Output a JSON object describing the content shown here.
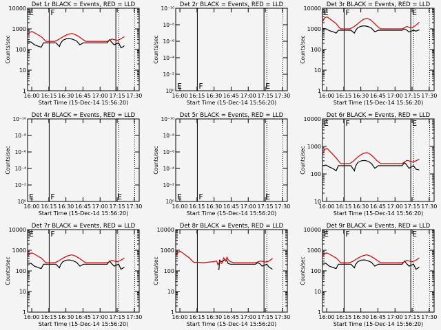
{
  "chart_data": [
    {
      "type": "line",
      "title": "Det 1r BLACK = Events, RED = LLD",
      "xlabel": "Start Time (15-Dec-14 15:56:20)",
      "ylabel": "Counts/sec",
      "yscale": "log",
      "ytick_labels": [
        "1",
        "10",
        "100",
        "1000",
        "10000"
      ],
      "xtick_labels": [
        "16:00",
        "16:15",
        "16:30",
        "16:45",
        "17:00",
        "17:15",
        "17:30"
      ],
      "corner_labels": {
        "top": [
          "E",
          "F"
        ],
        "bottom": []
      },
      "series": [
        {
          "color": "#000000",
          "x": [
            0,
            3,
            6,
            10,
            12,
            14,
            16,
            18,
            22,
            25,
            28,
            29,
            31,
            34,
            37,
            40,
            43,
            46,
            49,
            51,
            54,
            57,
            60,
            63,
            66,
            70,
            72,
            74,
            76,
            80,
            82,
            85
          ],
          "y": [
            240,
            230,
            170,
            140,
            130,
            210,
            210,
            210,
            210,
            210,
            140,
            200,
            280,
            330,
            340,
            310,
            260,
            170,
            210,
            210,
            210,
            210,
            210,
            210,
            210,
            210,
            300,
            220,
            170,
            210,
            120,
            150
          ]
        },
        {
          "color": "#d00000",
          "x": [
            0,
            2,
            4,
            6,
            9,
            12,
            14,
            16,
            20,
            24,
            27,
            30,
            33,
            36,
            39,
            42,
            45,
            48,
            51,
            54,
            57,
            60,
            63,
            66,
            68,
            70,
            72,
            74,
            76,
            79,
            82,
            85
          ],
          "y": [
            500,
            700,
            740,
            650,
            520,
            420,
            330,
            250,
            250,
            250,
            300,
            380,
            470,
            560,
            600,
            530,
            420,
            320,
            250,
            250,
            250,
            250,
            250,
            250,
            250,
            250,
            280,
            320,
            300,
            280,
            330,
            420
          ]
        }
      ]
    },
    {
      "type": "line",
      "title": "Det 2r BLACK = Events, RED = LLD",
      "xlabel": "Start Time (15-Dec-14 15:56:20)",
      "ylabel": "Counts/sec",
      "yscale": "log",
      "ytick_labels": [
        "10⁰",
        "10⁻²",
        "10⁻⁴",
        "10⁻⁶",
        "10⁻⁸",
        "10⁻¹⁰"
      ],
      "xtick_labels": [
        "16:00",
        "16:15",
        "16:30",
        "16:45",
        "17:00",
        "17:15",
        "17:30"
      ],
      "corner_labels": {
        "top": [],
        "bottom": [
          "E",
          "F",
          "E"
        ]
      },
      "series": []
    },
    {
      "type": "line",
      "title": "Det 3r BLACK = Events, RED = LLD",
      "xlabel": "Start Time (15-Dec-14 15:56:20)",
      "ylabel": "Counts/sec",
      "yscale": "log",
      "ytick_labels": [
        "1",
        "10",
        "100",
        "1000",
        "10000"
      ],
      "xtick_labels": [
        "16:00",
        "16:15",
        "16:30",
        "16:45",
        "17:00",
        "17:15",
        "17:30"
      ],
      "corner_labels": {
        "top": [
          "E",
          "F",
          "E"
        ],
        "bottom": []
      },
      "series": [
        {
          "color": "#000000",
          "x": [
            0,
            3,
            6,
            10,
            12,
            14,
            16,
            18,
            22,
            25,
            28,
            29,
            31,
            34,
            37,
            40,
            43,
            46,
            49,
            51,
            54,
            57,
            60,
            63,
            66,
            70,
            72,
            74,
            76,
            80,
            82,
            85
          ],
          "y": [
            1050,
            1000,
            820,
            700,
            620,
            860,
            860,
            860,
            860,
            860,
            620,
            820,
            1150,
            1350,
            1400,
            1300,
            1080,
            720,
            860,
            860,
            860,
            860,
            860,
            860,
            860,
            860,
            1000,
            880,
            700,
            860,
            780,
            900
          ]
        },
        {
          "color": "#d00000",
          "x": [
            0,
            2,
            4,
            6,
            9,
            12,
            14,
            16,
            20,
            24,
            27,
            30,
            33,
            36,
            39,
            42,
            45,
            48,
            51,
            54,
            57,
            60,
            63,
            66,
            68,
            70,
            72,
            74,
            76,
            79,
            82,
            85
          ],
          "y": [
            2200,
            3500,
            3800,
            3200,
            2400,
            1800,
            1300,
            1000,
            1000,
            1000,
            1200,
            1600,
            2200,
            2900,
            3200,
            2800,
            2000,
            1350,
            1000,
            1000,
            1000,
            1000,
            1000,
            1000,
            1000,
            1000,
            1150,
            1300,
            1200,
            1150,
            1500,
            2100
          ]
        }
      ]
    },
    {
      "type": "line",
      "title": "Det 4r BLACK = Events, RED = LLD",
      "xlabel": "Start Time (15-Dec-14 15:56:20)",
      "ylabel": "Counts/sec",
      "yscale": "log",
      "ytick_labels": [
        "10⁰",
        "10⁻²",
        "10⁻⁴",
        "10⁻⁶",
        "10⁻⁸",
        "10⁻¹⁰"
      ],
      "xtick_labels": [
        "16:00",
        "16:15",
        "16:30",
        "16:45",
        "17:00",
        "17:15",
        "17:30"
      ],
      "corner_labels": {
        "top": [],
        "bottom": [
          "E",
          "F",
          "E"
        ]
      },
      "series": []
    },
    {
      "type": "line",
      "title": "Det 5r BLACK = Events, RED = LLD",
      "xlabel": "Start Time (15-Dec-14 15:56:20)",
      "ylabel": "Counts/sec",
      "yscale": "log",
      "ytick_labels": [
        "10⁰",
        "10⁻²",
        "10⁻⁴",
        "10⁻⁶",
        "10⁻⁸",
        "10⁻¹⁰"
      ],
      "xtick_labels": [
        "16:00",
        "16:15",
        "16:30",
        "16:45",
        "17:00",
        "17:15",
        "17:30"
      ],
      "corner_labels": {
        "top": [],
        "bottom": [
          "E",
          "F",
          "E"
        ]
      },
      "series": []
    },
    {
      "type": "line",
      "title": "Det 6r BLACK = Events, RED = LLD",
      "xlabel": "Start Time (15-Dec-14 15:56:20)",
      "ylabel": "Counts/sec",
      "yscale": "log",
      "ytick_labels": [
        "10",
        "100",
        "1000",
        "10000"
      ],
      "xtick_labels": [
        "16:00",
        "16:15",
        "16:30",
        "16:45",
        "17:00",
        "17:15",
        "17:30"
      ],
      "corner_labels": {
        "top": [
          "E",
          "F",
          "E"
        ],
        "bottom": []
      },
      "series": [
        {
          "color": "#000000",
          "x": [
            0,
            3,
            6,
            10,
            12,
            14,
            16,
            18,
            22,
            25,
            28,
            29,
            31,
            34,
            37,
            40,
            43,
            46,
            49,
            51,
            54,
            57,
            60,
            63,
            66,
            70,
            72,
            74,
            76,
            80,
            82,
            85
          ],
          "y": [
            200,
            210,
            180,
            150,
            130,
            200,
            200,
            200,
            200,
            200,
            130,
            190,
            260,
            300,
            310,
            290,
            240,
            160,
            200,
            200,
            200,
            200,
            200,
            200,
            200,
            200,
            260,
            210,
            160,
            200,
            150,
            140
          ]
        },
        {
          "color": "#d00000",
          "x": [
            0,
            2,
            4,
            6,
            9,
            12,
            14,
            16,
            20,
            24,
            27,
            30,
            33,
            36,
            39,
            42,
            45,
            48,
            51,
            54,
            57,
            60,
            63,
            66,
            68,
            70,
            72,
            74,
            76,
            79,
            82,
            85
          ],
          "y": [
            520,
            780,
            850,
            700,
            520,
            380,
            300,
            240,
            240,
            240,
            290,
            380,
            480,
            560,
            600,
            520,
            400,
            300,
            240,
            240,
            240,
            240,
            240,
            240,
            240,
            240,
            270,
            310,
            300,
            270,
            300,
            340
          ]
        }
      ]
    },
    {
      "type": "line",
      "title": "Det 7r BLACK = Events, RED = LLD",
      "xlabel": "Start Time (15-Dec-14 15:56:20)",
      "ylabel": "Counts/sec",
      "yscale": "log",
      "ytick_labels": [
        "1",
        "10",
        "100",
        "1000",
        "10000"
      ],
      "xtick_labels": [
        "16:00",
        "16:15",
        "16:30",
        "16:45",
        "17:00",
        "17:15",
        "17:30"
      ],
      "corner_labels": {
        "top": [
          "E",
          "F"
        ],
        "bottom": []
      },
      "series": [
        {
          "color": "#000000",
          "x": [
            0,
            3,
            6,
            10,
            12,
            14,
            16,
            18,
            22,
            25,
            28,
            29,
            31,
            34,
            37,
            40,
            43,
            46,
            49,
            51,
            54,
            57,
            60,
            63,
            66,
            70,
            72,
            74,
            76,
            80,
            82,
            85
          ],
          "y": [
            240,
            230,
            170,
            140,
            130,
            210,
            210,
            210,
            210,
            210,
            140,
            200,
            280,
            330,
            340,
            310,
            260,
            170,
            210,
            210,
            210,
            210,
            210,
            210,
            210,
            210,
            300,
            220,
            170,
            210,
            120,
            150
          ]
        },
        {
          "color": "#d00000",
          "x": [
            0,
            2,
            4,
            6,
            9,
            12,
            14,
            16,
            20,
            24,
            27,
            30,
            33,
            36,
            39,
            42,
            45,
            48,
            51,
            54,
            57,
            60,
            63,
            66,
            68,
            70,
            72,
            74,
            76,
            79,
            82,
            85
          ],
          "y": [
            500,
            700,
            740,
            650,
            520,
            420,
            330,
            250,
            250,
            250,
            300,
            380,
            470,
            560,
            600,
            530,
            420,
            320,
            250,
            250,
            250,
            250,
            250,
            250,
            250,
            250,
            280,
            320,
            300,
            280,
            330,
            420
          ]
        }
      ]
    },
    {
      "type": "line",
      "title": "Det 8r BLACK = Events, RED = LLD",
      "xlabel": "Start Time (15-Dec-14 15:56:20)",
      "ylabel": "Counts/sec",
      "yscale": "log",
      "ytick_labels": [
        "1",
        "10",
        "100",
        "1000",
        "10000"
      ],
      "xtick_labels": [
        "16:00",
        "16:15",
        "16:30",
        "16:45",
        "17:00",
        "17:15",
        "17:30"
      ],
      "corner_labels": {
        "top": [],
        "bottom": []
      },
      "series": [
        {
          "color": "#000000",
          "x": [
            37,
            38,
            38.5,
            39,
            41,
            43,
            45,
            46,
            48,
            51,
            54,
            57,
            60,
            63,
            66,
            70,
            72,
            74,
            76,
            80,
            82,
            85
          ],
          "y": [
            120,
            120,
            320,
            300,
            280,
            350,
            300,
            230,
            210,
            210,
            210,
            210,
            210,
            210,
            210,
            210,
            250,
            220,
            170,
            210,
            150,
            120
          ]
        },
        {
          "color": "#d00000",
          "x": [
            0,
            2,
            4,
            6,
            9,
            12,
            14,
            16,
            20,
            24,
            27,
            30,
            33,
            36,
            37,
            38,
            39,
            40,
            41,
            42,
            43,
            44,
            45,
            46,
            48,
            51,
            54,
            57,
            60,
            63,
            66,
            70,
            72,
            74,
            76,
            79,
            82,
            85
          ],
          "y": [
            500,
            800,
            900,
            750,
            560,
            430,
            320,
            260,
            260,
            250,
            260,
            270,
            280,
            300,
            200,
            240,
            320,
            230,
            250,
            430,
            380,
            300,
            460,
            350,
            280,
            250,
            250,
            250,
            250,
            250,
            250,
            250,
            270,
            300,
            290,
            270,
            300,
            400
          ]
        }
      ]
    },
    {
      "type": "line",
      "title": "Det 9r BLACK = Events, RED = LLD",
      "xlabel": "Start Time (15-Dec-14 15:56:20)",
      "ylabel": "Counts/sec",
      "yscale": "log",
      "ytick_labels": [
        "1",
        "10",
        "100",
        "1000",
        "10000"
      ],
      "xtick_labels": [
        "16:00",
        "16:15",
        "16:30",
        "16:45",
        "17:00",
        "17:15",
        "17:30"
      ],
      "corner_labels": {
        "top": [
          "E",
          "F",
          "E"
        ],
        "bottom": []
      },
      "series": [
        {
          "color": "#000000",
          "x": [
            0,
            3,
            6,
            10,
            12,
            14,
            16,
            18,
            22,
            25,
            28,
            29,
            31,
            34,
            37,
            40,
            43,
            46,
            49,
            51,
            54,
            57,
            60,
            63,
            66,
            70,
            72,
            74,
            76,
            80,
            82,
            85
          ],
          "y": [
            240,
            230,
            170,
            140,
            130,
            210,
            210,
            210,
            210,
            210,
            140,
            200,
            280,
            330,
            340,
            310,
            260,
            170,
            210,
            210,
            210,
            210,
            210,
            210,
            210,
            210,
            300,
            220,
            170,
            210,
            120,
            150
          ]
        },
        {
          "color": "#d00000",
          "x": [
            0,
            2,
            4,
            6,
            9,
            12,
            14,
            16,
            20,
            24,
            27,
            30,
            33,
            36,
            39,
            42,
            45,
            48,
            51,
            54,
            57,
            60,
            63,
            66,
            68,
            70,
            72,
            74,
            76,
            79,
            82,
            85
          ],
          "y": [
            500,
            700,
            740,
            650,
            520,
            420,
            330,
            250,
            250,
            250,
            300,
            380,
            470,
            560,
            600,
            530,
            420,
            320,
            250,
            250,
            250,
            250,
            250,
            250,
            250,
            250,
            280,
            320,
            300,
            280,
            330,
            420
          ]
        }
      ]
    }
  ]
}
